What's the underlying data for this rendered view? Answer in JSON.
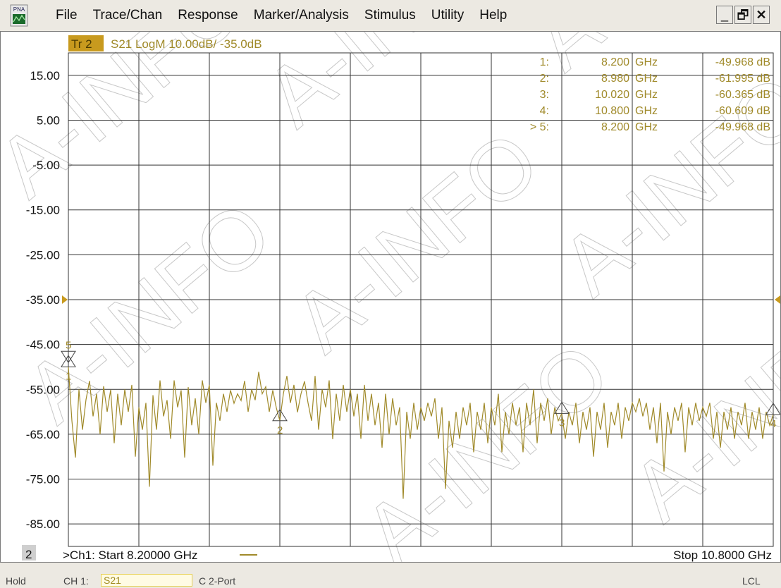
{
  "app": {
    "icon_label": "PNA",
    "icon": "pna-app-icon",
    "menu": [
      "File",
      "Trace/Chan",
      "Response",
      "Marker/Analysis",
      "Stimulus",
      "Utility",
      "Help"
    ],
    "window_buttons": [
      {
        "name": "minimize",
        "glyph": "_"
      },
      {
        "name": "restore",
        "glyph": "🗗"
      },
      {
        "name": "close",
        "glyph": "✕"
      }
    ]
  },
  "trace": {
    "tag": "Tr 2",
    "info": "S21 LogM 10.00dB/  -35.0dB",
    "color": "#a08a2a",
    "tag_bg": "#c89a1e"
  },
  "chart_data": {
    "type": "line",
    "title": "",
    "xlabel": "",
    "ylabel": "",
    "units": {
      "x": "GHz",
      "y": "dB"
    },
    "xlim": [
      8.2,
      10.8
    ],
    "ylim": [
      -90,
      20
    ],
    "ytick_labels": [
      "15.00",
      "5.00",
      "-5.00",
      "-15.00",
      "-25.00",
      "-35.00",
      "-45.00",
      "-55.00",
      "-65.00",
      "-75.00",
      "-85.00"
    ],
    "ytick_values": [
      15,
      5,
      -5,
      -15,
      -25,
      -35,
      -45,
      -55,
      -65,
      -75,
      -85
    ],
    "x_divisions": 10,
    "grid": true,
    "reference_level": -35,
    "series": [
      {
        "values": [
          {
            "x": 8.2,
            "y": -49.97
          },
          {
            "x": 8.213,
            "y": -62.0
          },
          {
            "x": 8.226,
            "y": -70.2
          },
          {
            "x": 8.239,
            "y": -55.0
          },
          {
            "x": 8.252,
            "y": -64.0
          },
          {
            "x": 8.265,
            "y": -57.3
          },
          {
            "x": 8.278,
            "y": -53.1
          },
          {
            "x": 8.291,
            "y": -61.0
          },
          {
            "x": 8.304,
            "y": -56.0
          },
          {
            "x": 8.317,
            "y": -65.0
          },
          {
            "x": 8.33,
            "y": -54.3
          },
          {
            "x": 8.343,
            "y": -60.0
          },
          {
            "x": 8.356,
            "y": -55.1
          },
          {
            "x": 8.369,
            "y": -67.0
          },
          {
            "x": 8.382,
            "y": -56.0
          },
          {
            "x": 8.395,
            "y": -63.0
          },
          {
            "x": 8.408,
            "y": -55.0
          },
          {
            "x": 8.421,
            "y": -60.0
          },
          {
            "x": 8.434,
            "y": -54.0
          },
          {
            "x": 8.447,
            "y": -70.0
          },
          {
            "x": 8.46,
            "y": -59.0
          },
          {
            "x": 8.473,
            "y": -64.0
          },
          {
            "x": 8.486,
            "y": -58.0
          },
          {
            "x": 8.499,
            "y": -76.7
          },
          {
            "x": 8.512,
            "y": -56.3
          },
          {
            "x": 8.525,
            "y": -64.0
          },
          {
            "x": 8.538,
            "y": -53.0
          },
          {
            "x": 8.551,
            "y": -61.0
          },
          {
            "x": 8.564,
            "y": -57.4
          },
          {
            "x": 8.577,
            "y": -66.0
          },
          {
            "x": 8.59,
            "y": -53.0
          },
          {
            "x": 8.603,
            "y": -59.0
          },
          {
            "x": 8.616,
            "y": -55.2
          },
          {
            "x": 8.629,
            "y": -70.2
          },
          {
            "x": 8.642,
            "y": -54.5
          },
          {
            "x": 8.655,
            "y": -63.0
          },
          {
            "x": 8.668,
            "y": -57.0
          },
          {
            "x": 8.681,
            "y": -65.0
          },
          {
            "x": 8.694,
            "y": -53.0
          },
          {
            "x": 8.707,
            "y": -58.0
          },
          {
            "x": 8.72,
            "y": -54.0
          },
          {
            "x": 8.733,
            "y": -72.0
          },
          {
            "x": 8.746,
            "y": -58.0
          },
          {
            "x": 8.759,
            "y": -62.0
          },
          {
            "x": 8.772,
            "y": -56.0
          },
          {
            "x": 8.785,
            "y": -60.0
          },
          {
            "x": 8.798,
            "y": -55.2
          },
          {
            "x": 8.811,
            "y": -58.1
          },
          {
            "x": 8.824,
            "y": -56.0
          },
          {
            "x": 8.837,
            "y": -57.5
          },
          {
            "x": 8.85,
            "y": -53.1
          },
          {
            "x": 8.863,
            "y": -60.0
          },
          {
            "x": 8.876,
            "y": -55.0
          },
          {
            "x": 8.889,
            "y": -57.4
          },
          {
            "x": 8.902,
            "y": -51.1
          },
          {
            "x": 8.915,
            "y": -56.0
          },
          {
            "x": 8.928,
            "y": -54.4
          },
          {
            "x": 8.941,
            "y": -60.0
          },
          {
            "x": 8.954,
            "y": -55.2
          },
          {
            "x": 8.967,
            "y": -59.1
          },
          {
            "x": 8.98,
            "y": -62.0
          },
          {
            "x": 8.993,
            "y": -56.0
          },
          {
            "x": 9.006,
            "y": -52.0
          },
          {
            "x": 9.019,
            "y": -58.0
          },
          {
            "x": 9.032,
            "y": -54.0
          },
          {
            "x": 9.045,
            "y": -60.1
          },
          {
            "x": 9.058,
            "y": -56.0
          },
          {
            "x": 9.071,
            "y": -53.2
          },
          {
            "x": 9.084,
            "y": -58.0
          },
          {
            "x": 9.097,
            "y": -62.0
          },
          {
            "x": 9.11,
            "y": -52.0
          },
          {
            "x": 9.123,
            "y": -64.0
          },
          {
            "x": 9.136,
            "y": -55.0
          },
          {
            "x": 9.149,
            "y": -59.0
          },
          {
            "x": 9.162,
            "y": -53.0
          },
          {
            "x": 9.175,
            "y": -66.1
          },
          {
            "x": 9.188,
            "y": -56.0
          },
          {
            "x": 9.201,
            "y": -62.0
          },
          {
            "x": 9.214,
            "y": -54.0
          },
          {
            "x": 9.227,
            "y": -60.0
          },
          {
            "x": 9.24,
            "y": -55.0
          },
          {
            "x": 9.253,
            "y": -61.0
          },
          {
            "x": 9.266,
            "y": -56.0
          },
          {
            "x": 9.279,
            "y": -66.0
          },
          {
            "x": 9.292,
            "y": -54.0
          },
          {
            "x": 9.305,
            "y": -62.0
          },
          {
            "x": 9.318,
            "y": -56.0
          },
          {
            "x": 9.331,
            "y": -63.0
          },
          {
            "x": 9.344,
            "y": -58.0
          },
          {
            "x": 9.357,
            "y": -68.0
          },
          {
            "x": 9.37,
            "y": -56.0
          },
          {
            "x": 9.383,
            "y": -65.0
          },
          {
            "x": 9.396,
            "y": -57.0
          },
          {
            "x": 9.409,
            "y": -63.0
          },
          {
            "x": 9.422,
            "y": -59.0
          },
          {
            "x": 9.435,
            "y": -79.4
          },
          {
            "x": 9.448,
            "y": -60.0
          },
          {
            "x": 9.461,
            "y": -66.0
          },
          {
            "x": 9.474,
            "y": -58.0
          },
          {
            "x": 9.487,
            "y": -64.0
          },
          {
            "x": 9.5,
            "y": -59.0
          },
          {
            "x": 9.513,
            "y": -62.0
          },
          {
            "x": 9.526,
            "y": -58.0
          },
          {
            "x": 9.539,
            "y": -61.0
          },
          {
            "x": 9.552,
            "y": -57.0
          },
          {
            "x": 9.565,
            "y": -66.0
          },
          {
            "x": 9.578,
            "y": -59.0
          },
          {
            "x": 9.591,
            "y": -77.2
          },
          {
            "x": 9.604,
            "y": -62.0
          },
          {
            "x": 9.617,
            "y": -68.0
          },
          {
            "x": 9.63,
            "y": -60.0
          },
          {
            "x": 9.643,
            "y": -66.0
          },
          {
            "x": 9.656,
            "y": -59.0
          },
          {
            "x": 9.669,
            "y": -63.0
          },
          {
            "x": 9.682,
            "y": -58.0
          },
          {
            "x": 9.695,
            "y": -69.0
          },
          {
            "x": 9.708,
            "y": -60.0
          },
          {
            "x": 9.721,
            "y": -64.0
          },
          {
            "x": 9.734,
            "y": -58.0
          },
          {
            "x": 9.747,
            "y": -67.0
          },
          {
            "x": 9.76,
            "y": -59.0
          },
          {
            "x": 9.773,
            "y": -63.0
          },
          {
            "x": 9.786,
            "y": -56.0
          },
          {
            "x": 9.799,
            "y": -69.0
          },
          {
            "x": 9.812,
            "y": -60.0
          },
          {
            "x": 9.825,
            "y": -65.0
          },
          {
            "x": 9.838,
            "y": -58.0
          },
          {
            "x": 9.851,
            "y": -63.0
          },
          {
            "x": 9.864,
            "y": -59.0
          },
          {
            "x": 9.877,
            "y": -69.0
          },
          {
            "x": 9.89,
            "y": -58.0
          },
          {
            "x": 9.903,
            "y": -63.0
          },
          {
            "x": 9.916,
            "y": -55.0
          },
          {
            "x": 9.929,
            "y": -67.0
          },
          {
            "x": 9.942,
            "y": -58.0
          },
          {
            "x": 9.955,
            "y": -62.0
          },
          {
            "x": 9.968,
            "y": -57.0
          },
          {
            "x": 9.981,
            "y": -65.0
          },
          {
            "x": 9.994,
            "y": -59.0
          },
          {
            "x": 10.007,
            "y": -62.0
          },
          {
            "x": 10.02,
            "y": -60.37
          },
          {
            "x": 10.033,
            "y": -66.0
          },
          {
            "x": 10.046,
            "y": -60.0
          },
          {
            "x": 10.059,
            "y": -63.0
          },
          {
            "x": 10.072,
            "y": -58.0
          },
          {
            "x": 10.085,
            "y": -67.0
          },
          {
            "x": 10.098,
            "y": -60.0
          },
          {
            "x": 10.111,
            "y": -64.0
          },
          {
            "x": 10.124,
            "y": -59.0
          },
          {
            "x": 10.137,
            "y": -70.0
          },
          {
            "x": 10.15,
            "y": -60.0
          },
          {
            "x": 10.163,
            "y": -64.0
          },
          {
            "x": 10.176,
            "y": -58.0
          },
          {
            "x": 10.189,
            "y": -68.0
          },
          {
            "x": 10.202,
            "y": -60.0
          },
          {
            "x": 10.215,
            "y": -63.0
          },
          {
            "x": 10.228,
            "y": -58.0
          },
          {
            "x": 10.241,
            "y": -66.0
          },
          {
            "x": 10.254,
            "y": -59.0
          },
          {
            "x": 10.267,
            "y": -62.0
          },
          {
            "x": 10.28,
            "y": -58.0
          },
          {
            "x": 10.293,
            "y": -60.0
          },
          {
            "x": 10.306,
            "y": -57.0
          },
          {
            "x": 10.319,
            "y": -61.0
          },
          {
            "x": 10.332,
            "y": -58.0
          },
          {
            "x": 10.345,
            "y": -64.0
          },
          {
            "x": 10.358,
            "y": -59.0
          },
          {
            "x": 10.371,
            "y": -67.0
          },
          {
            "x": 10.384,
            "y": -58.0
          },
          {
            "x": 10.397,
            "y": -73.3
          },
          {
            "x": 10.41,
            "y": -60.0
          },
          {
            "x": 10.423,
            "y": -65.0
          },
          {
            "x": 10.436,
            "y": -59.0
          },
          {
            "x": 10.449,
            "y": -62.0
          },
          {
            "x": 10.462,
            "y": -58.0
          },
          {
            "x": 10.475,
            "y": -69.0
          },
          {
            "x": 10.488,
            "y": -59.0
          },
          {
            "x": 10.501,
            "y": -63.0
          },
          {
            "x": 10.514,
            "y": -58.0
          },
          {
            "x": 10.527,
            "y": -62.0
          },
          {
            "x": 10.54,
            "y": -59.0
          },
          {
            "x": 10.553,
            "y": -61.0
          },
          {
            "x": 10.566,
            "y": -58.0
          },
          {
            "x": 10.579,
            "y": -66.0
          },
          {
            "x": 10.592,
            "y": -60.0
          },
          {
            "x": 10.605,
            "y": -68.0
          },
          {
            "x": 10.618,
            "y": -60.0
          },
          {
            "x": 10.631,
            "y": -64.0
          },
          {
            "x": 10.644,
            "y": -59.0
          },
          {
            "x": 10.657,
            "y": -66.0
          },
          {
            "x": 10.67,
            "y": -60.0
          },
          {
            "x": 10.683,
            "y": -63.0
          },
          {
            "x": 10.696,
            "y": -58.0
          },
          {
            "x": 10.709,
            "y": -66.0
          },
          {
            "x": 10.722,
            "y": -60.0
          },
          {
            "x": 10.735,
            "y": -64.0
          },
          {
            "x": 10.748,
            "y": -59.0
          },
          {
            "x": 10.761,
            "y": -66.0
          },
          {
            "x": 10.774,
            "y": -60.0
          },
          {
            "x": 10.787,
            "y": -63.0
          },
          {
            "x": 10.8,
            "y": -60.61
          }
        ]
      }
    ],
    "markers": [
      {
        "num": "1",
        "x": 8.2,
        "y": -49.968,
        "label": "1"
      },
      {
        "num": "2",
        "x": 8.98,
        "y": -61.995,
        "label": "2"
      },
      {
        "num": "3",
        "x": 10.02,
        "y": -60.365,
        "label": "3"
      },
      {
        "num": "4",
        "x": 10.8,
        "y": -60.609,
        "label": "4"
      },
      {
        "num": "5",
        "x": 8.2,
        "y": -49.968,
        "label": "5",
        "active": true
      }
    ]
  },
  "marker_table": [
    {
      "label": "1:",
      "freq": "8.200",
      "funit": "GHz",
      "value": "-49.968 dB"
    },
    {
      "label": "2:",
      "freq": "8.980",
      "funit": "GHz",
      "value": "-61.995 dB"
    },
    {
      "label": "3:",
      "freq": "10.020",
      "funit": "GHz",
      "value": "-60.365 dB"
    },
    {
      "label": "4:",
      "freq": "10.800",
      "funit": "GHz",
      "value": "-60.609 dB"
    },
    {
      "label": "> 5:",
      "freq": "8.200",
      "funit": "GHz",
      "value": "-49.968 dB"
    }
  ],
  "channel": {
    "window_number": "2",
    "start_text": ">Ch1: Start  8.20000 GHz",
    "stop_text": "Stop  10.8000 GHz"
  },
  "watermark": {
    "text": "A-INFO"
  },
  "status": {
    "hold": "Hold",
    "ch": "CH 1:",
    "meas": "S21",
    "cal": "C  2-Port",
    "lcl": "LCL"
  }
}
